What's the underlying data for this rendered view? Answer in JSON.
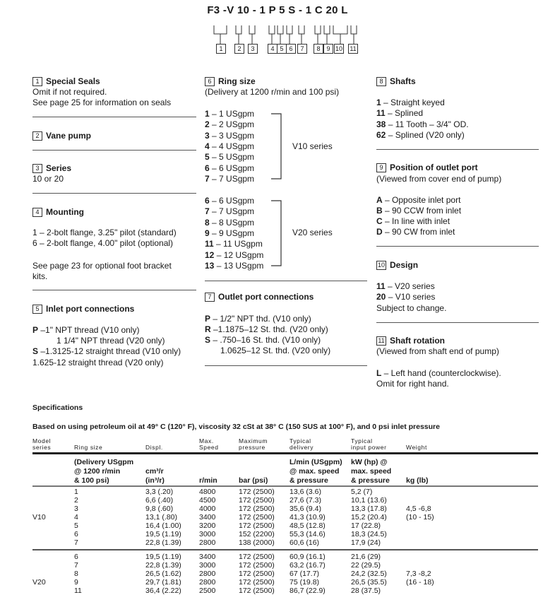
{
  "model_code": {
    "title": "F3 -V 10 - 1 P 5 S - 1 C 20 L",
    "boxes": [
      "1",
      "2",
      "3",
      "4",
      "5",
      "6",
      "7",
      "8",
      "9",
      "10",
      "11"
    ]
  },
  "sections": {
    "s1": {
      "num": "1",
      "title": "Special Seals",
      "lines": [
        "Omit if not required.",
        "See  page 25 for information on seals"
      ]
    },
    "s2": {
      "num": "2",
      "title": "Vane pump"
    },
    "s3": {
      "num": "3",
      "title": "Series",
      "lines": [
        "10 or 20"
      ]
    },
    "s4": {
      "num": "4",
      "title": "Mounting",
      "lines": [
        "1 – 2-bolt flange, 3.25\"  pilot (standard)",
        "6 – 2-bolt flange, 4.00\"  pilot (optional)",
        "See  page 23 for optional foot bracket",
        "kits."
      ]
    },
    "s5": {
      "num": "5",
      "title": "Inlet port connections",
      "items": [
        {
          "k": "P",
          "t": " –1\"  NPT thread (V10 only)"
        },
        {
          "k": "",
          "t": "1 1/4\" NPT thread (V20 only)"
        },
        {
          "k": "S",
          "t": " –1.3125-12  straight thread (V10 only)"
        },
        {
          "k": "",
          "t": "1.625-12 straight thread (V20 only)"
        }
      ]
    },
    "s6": {
      "num": "6",
      "title": "Ring size",
      "subtitle": "(Delivery at 1200 r/min and 100 psi)",
      "v10": [
        {
          "k": "1",
          "t": " – 1 USgpm"
        },
        {
          "k": "2",
          "t": " – 2 USgpm"
        },
        {
          "k": "3",
          "t": " – 3 USgpm"
        },
        {
          "k": "4",
          "t": " – 4 USgpm"
        },
        {
          "k": "5",
          "t": " – 5 USgpm"
        },
        {
          "k": "6",
          "t": " – 6 USgpm"
        },
        {
          "k": "7",
          "t": " – 7 USgpm"
        }
      ],
      "v10_label": "V10 series",
      "v20": [
        {
          "k": "6",
          "t": " – 6 USgpm"
        },
        {
          "k": "7",
          "t": " – 7 USgpm"
        },
        {
          "k": "8",
          "t": " – 8 USgpm"
        },
        {
          "k": "9",
          "t": " – 9 USgpm"
        },
        {
          "k": "11",
          "t": " – 11 USgpm"
        },
        {
          "k": "12",
          "t": " – 12 USgpm"
        },
        {
          "k": "13",
          "t": " – 13 USgpm"
        }
      ],
      "v20_label": "V20 series"
    },
    "s7": {
      "num": "7",
      "title": "Outlet port connections",
      "items": [
        {
          "k": "P",
          "t": " – 1/2\" NPT thd. (V10 only)"
        },
        {
          "k": "R",
          "t": " –1.1875–12 St. thd. (V20 only)"
        },
        {
          "k": "S",
          "t": " – .750–16 St. thd. (V10 only)"
        },
        {
          "k": "",
          "t": "1.0625–12 St. thd. (V20 only)"
        }
      ]
    },
    "s8": {
      "num": "8",
      "title": "Shafts",
      "items": [
        {
          "k": "1",
          "t": " – Straight keyed"
        },
        {
          "k": "11",
          "t": " – Splined"
        },
        {
          "k": "38",
          "t": " – 11 Tooth – 3/4\" OD."
        },
        {
          "k": "62",
          "t": " – Splined (V20 only)"
        }
      ]
    },
    "s9": {
      "num": "9",
      "title": "Position of outlet port",
      "subtitle": "(Viewed from cover end of pump)",
      "items": [
        {
          "k": "A",
          "t": " – Opposite  inlet port"
        },
        {
          "k": "B",
          "t": " – 90 CCW  from inlet"
        },
        {
          "k": "C",
          "t": " – In line with inlet"
        },
        {
          "k": "D",
          "t": " – 90 CW  from inlet"
        }
      ]
    },
    "s10": {
      "num": "10",
      "title": "Design",
      "items": [
        {
          "k": "11",
          "t": " – V20 series"
        },
        {
          "k": "20",
          "t": " – V10 series"
        }
      ],
      "note": "Subject to change."
    },
    "s11": {
      "num": "11",
      "title": "Shaft rotation",
      "subtitle": "(Viewed from shaft end of pump)",
      "items": [
        {
          "k": "L",
          "t": " – Left hand (counterclockwise)."
        }
      ],
      "note": "Omit for right hand."
    }
  },
  "specs": {
    "title": "Specifications",
    "basis": "Based on using petroleum oil at 49° C (120° F), viscosity 32 cSt at 38° C (150 SUS  at 100° F), and 0 psi inlet pressure",
    "headers": [
      "Model\nseries",
      "Ring size",
      "Displ.",
      "Max.\nSpeed",
      "Maximum\npressure",
      "Typical\ndelivery",
      "Typical\ninput power",
      "Weight"
    ],
    "units": [
      "",
      "(Delivery USgpm\n@  1200 r/min\n& 100 psi)",
      "cm³/r\n(in³/r)",
      "r/min",
      "bar (psi)",
      "L/min (USgpm)\n@  max. speed\n& pressure",
      "kW (hp) @\nmax. speed\n& pressure",
      "kg (lb)"
    ],
    "groups": [
      {
        "rows": [
          [
            "",
            "1",
            "3,3 (.20)",
            "4800",
            "172 (2500)",
            "13,6 (3.6)",
            "5,2 (7)",
            ""
          ],
          [
            "",
            "2",
            "6,6 (.40)",
            "4500",
            "172 (2500)",
            "27,6 (7.3)",
            "10,1 (13.6)",
            ""
          ],
          [
            "",
            "3",
            "9,8 (.60)",
            "4000",
            "172 (2500)",
            "35,6 (9.4)",
            "13,3 (17.8)",
            "4,5 -6,8"
          ],
          [
            "V10",
            "4",
            "13,1 (.80)",
            "3400",
            "172 (2500)",
            "41,3 (10.9)",
            "15,2 (20.4)",
            "(10 - 15)"
          ],
          [
            "",
            "5",
            "16,4 (1.00)",
            "3200",
            "172 (2500)",
            "48,5 (12.8)",
            "17 (22.8)",
            ""
          ],
          [
            "",
            "6",
            "19,5 (1.19)",
            "3000",
            "152 (2200)",
            "55,3 (14.6)",
            "18,3 (24.5)",
            ""
          ],
          [
            "",
            "7",
            "22,8 (1.39)",
            "2800",
            "138 (2000)",
            "60,6 (16)",
            "17,9 (24)",
            ""
          ]
        ]
      },
      {
        "rows": [
          [
            "",
            "6",
            "19,5 (1.19)",
            "3400",
            "172 (2500)",
            "60,9 (16.1)",
            "21,6 (29)",
            ""
          ],
          [
            "",
            "7",
            "22,8 (1.39)",
            "3000",
            "172 (2500)",
            "63,2 (16.7)",
            "22 (29.5)",
            ""
          ],
          [
            "",
            "8",
            "26,5 (1.62)",
            "2800",
            "172 (2500)",
            "67 (17.7)",
            "24,2 (32.5)",
            "7,3 -8,2"
          ],
          [
            "V20",
            "9",
            "29,7 (1.81)",
            "2800",
            "172 (2500)",
            "75 (19.8)",
            "26,5 (35.5)",
            "(16 - 18)"
          ],
          [
            "",
            "11",
            "36,4 (2.22)",
            "2500",
            "172 (2500)",
            "86,7 (22.9)",
            "28 (37.5)",
            ""
          ]
        ]
      }
    ]
  }
}
